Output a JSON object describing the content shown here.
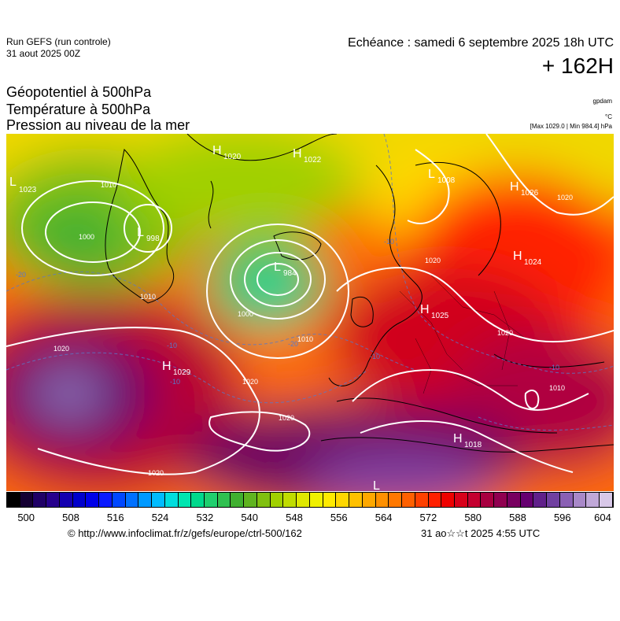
{
  "header": {
    "run_name": "Run GEFS (run controle)",
    "run_date": "31 aout 2025 00Z",
    "valid_time": "Echéance : samedi 6 septembre 2025 18h UTC",
    "lead": "+ 162H"
  },
  "fields": {
    "line1": "Géopotentiel à 500hPa",
    "line2": "Température à 500hPa",
    "line3": "Pression au niveau de la mer"
  },
  "units": {
    "geopotential": "gpdam",
    "temperature": "°C",
    "pressure_range": "[Max 1029.0 | Min 984.4] hPa"
  },
  "pressure_centers": [
    {
      "type": "L",
      "value": ""
    },
    {
      "type": "L",
      "value": "1023"
    },
    {
      "type": "H",
      "value": "1020"
    },
    {
      "type": "H",
      "value": "1022"
    },
    {
      "type": "L",
      "value": "1008"
    },
    {
      "type": "H",
      "value": "1026"
    },
    {
      "type": "H",
      "value": "1024"
    },
    {
      "type": "L",
      "value": "998"
    },
    {
      "type": "L",
      "value": "984"
    },
    {
      "type": "H",
      "value": "1025"
    },
    {
      "type": "H",
      "value": "1029"
    },
    {
      "type": "H",
      "value": "1018"
    },
    {
      "type": "L",
      "value": ""
    }
  ],
  "isobar_labels": [
    "1010",
    "1000",
    "1010",
    "1020",
    "1020",
    "1000",
    "1010",
    "1020",
    "1020",
    "1020",
    "1020",
    "1010",
    "1020"
  ],
  "isotherm_labels": [
    "-20",
    "-10",
    "-10",
    "-20",
    "-10",
    "-10",
    "-10"
  ],
  "colorbar": {
    "colors": [
      "#000000",
      "#140033",
      "#1f0066",
      "#26008c",
      "#1400b0",
      "#0000cc",
      "#0000e8",
      "#0a1aff",
      "#0047ff",
      "#0070ff",
      "#0099ff",
      "#00bbff",
      "#00dddd",
      "#00e5b0",
      "#00d98c",
      "#1fcf6e",
      "#30c050",
      "#40b030",
      "#60b420",
      "#80c010",
      "#a0d000",
      "#c0dc00",
      "#dfe800",
      "#f0f000",
      "#ffea00",
      "#ffd700",
      "#ffc000",
      "#ffa800",
      "#ff9000",
      "#ff7800",
      "#ff6000",
      "#ff4000",
      "#ff2000",
      "#ee0000",
      "#d8001a",
      "#c40030",
      "#a80040",
      "#900050",
      "#780060",
      "#660070",
      "#60208a",
      "#7040a0",
      "#8a60b4",
      "#a888c8",
      "#c0a8d8",
      "#d8c8e8"
    ],
    "tick_labels": [
      "500",
      "508",
      "516",
      "524",
      "532",
      "540",
      "548",
      "556",
      "564",
      "572",
      "580",
      "588",
      "596",
      "604"
    ]
  },
  "footer": {
    "credit": "© http://www.infoclimat.fr/z/gefs/europe/ctrl-500/162",
    "timestamp": "31 ao☆☆t 2025  4:55 UTC"
  }
}
